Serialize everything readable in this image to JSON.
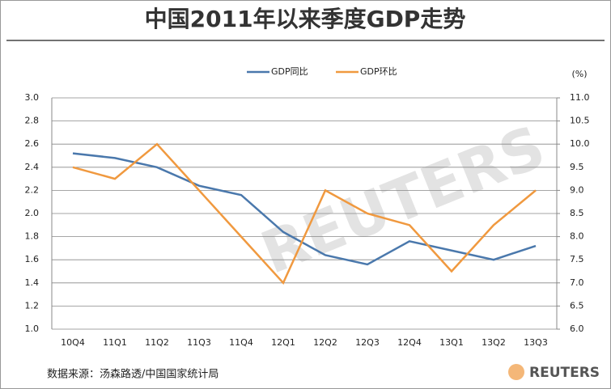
{
  "chart_data": {
    "type": "line",
    "title": "中国2011年以来季度GDP走势",
    "categories": [
      "10Q4",
      "11Q1",
      "11Q2",
      "11Q3",
      "11Q4",
      "12Q1",
      "12Q2",
      "12Q3",
      "12Q4",
      "13Q1",
      "13Q2",
      "13Q3"
    ],
    "series": [
      {
        "name": "GDP同比",
        "color": "#4a78ac",
        "axis": "y2",
        "values": [
          9.8,
          9.7,
          9.5,
          9.1,
          8.9,
          8.1,
          7.6,
          7.4,
          7.9,
          7.7,
          7.5,
          7.8
        ]
      },
      {
        "name": "GDP环比",
        "color": "#f0993f",
        "values": [
          2.4,
          2.3,
          2.6,
          2.2,
          1.8,
          1.4,
          2.2,
          2.0,
          1.9,
          1.5,
          1.9,
          2.2
        ]
      }
    ],
    "ylim": [
      1,
      3
    ],
    "yticks": [
      {
        "value": 1,
        "label": "1.0"
      },
      1.2,
      1.4,
      1.6,
      1.8,
      {
        "value": 2,
        "label": "2.0"
      },
      2.2,
      2.4,
      2.6,
      2.8,
      {
        "value": 3,
        "label": "3.0"
      }
    ],
    "y2lim": [
      6,
      11
    ],
    "y2ticks": [
      {
        "value": 6,
        "label": "6.0"
      },
      6.5,
      {
        "value": 7,
        "label": "7.0"
      },
      7.5,
      {
        "value": 8,
        "label": "8.0"
      },
      8.5,
      {
        "value": 9,
        "label": "9.0"
      },
      9.5,
      {
        "value": 10,
        "label": "10.0"
      },
      10.5,
      {
        "value": 11,
        "label": "11.0"
      }
    ],
    "y2label": "(%)",
    "grid": true,
    "source": "数据来源：汤森路透/中国国家统计局",
    "watermark": "REUTERS",
    "brand": "REUTERS"
  }
}
